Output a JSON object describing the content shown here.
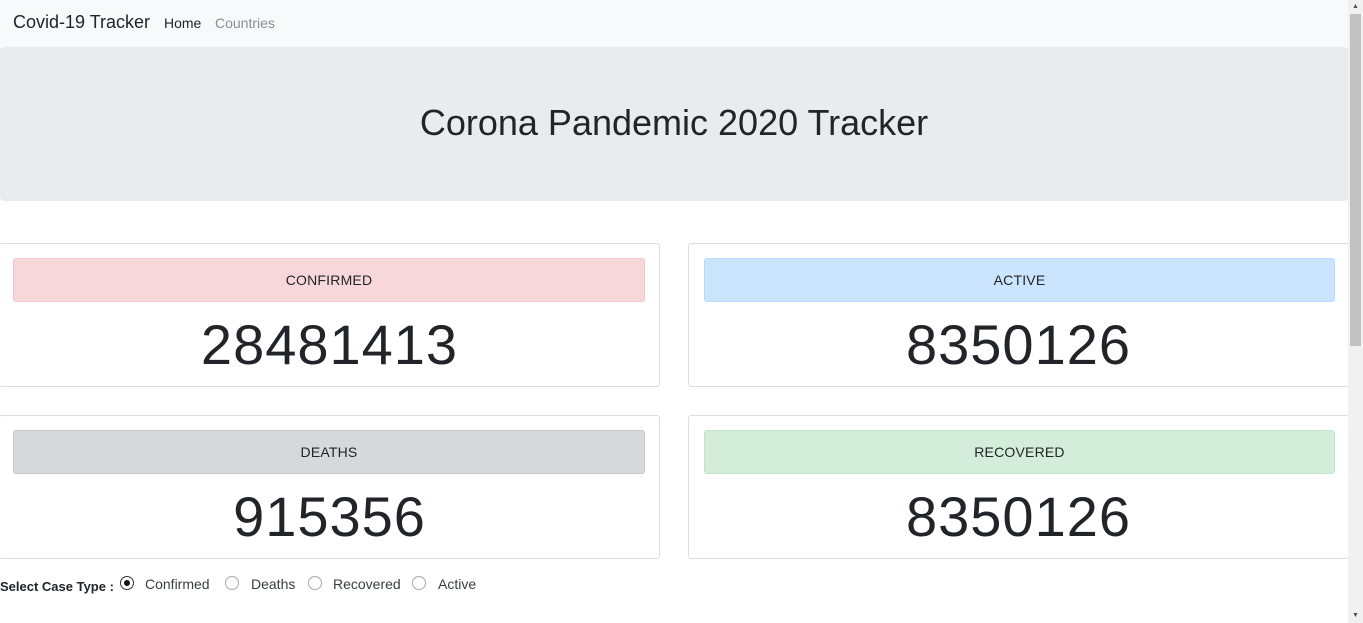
{
  "navbar": {
    "brand": "Covid-19 Tracker",
    "links": [
      {
        "label": "Home"
      },
      {
        "label": "Countries"
      }
    ]
  },
  "header": {
    "title": "Corona Pandemic 2020 Tracker"
  },
  "stats": {
    "confirmed": {
      "label": "CONFIRMED",
      "value": "28481413"
    },
    "active": {
      "label": "ACTIVE",
      "value": "8350126"
    },
    "deaths": {
      "label": "DEATHS",
      "value": "915356"
    },
    "recovered": {
      "label": "RECOVERED",
      "value": "8350126"
    }
  },
  "case_type": {
    "label": "Select Case Type :",
    "options": [
      {
        "label": "Confirmed",
        "checked": true
      },
      {
        "label": "Deaths",
        "checked": false
      },
      {
        "label": "Recovered",
        "checked": false
      },
      {
        "label": "Active",
        "checked": false
      }
    ]
  },
  "colors": {
    "confirmed_bg": "#f8d7da",
    "active_bg": "#cce5ff",
    "deaths_bg": "#d6d8d9",
    "recovered_bg": "#d4edda",
    "navbar_bg": "#f8f9fa",
    "jumbotron_bg": "#e9ecef"
  },
  "icons": {
    "scroll_up": "scroll-up-arrow-icon",
    "scroll_down": "scroll-down-arrow-icon"
  }
}
